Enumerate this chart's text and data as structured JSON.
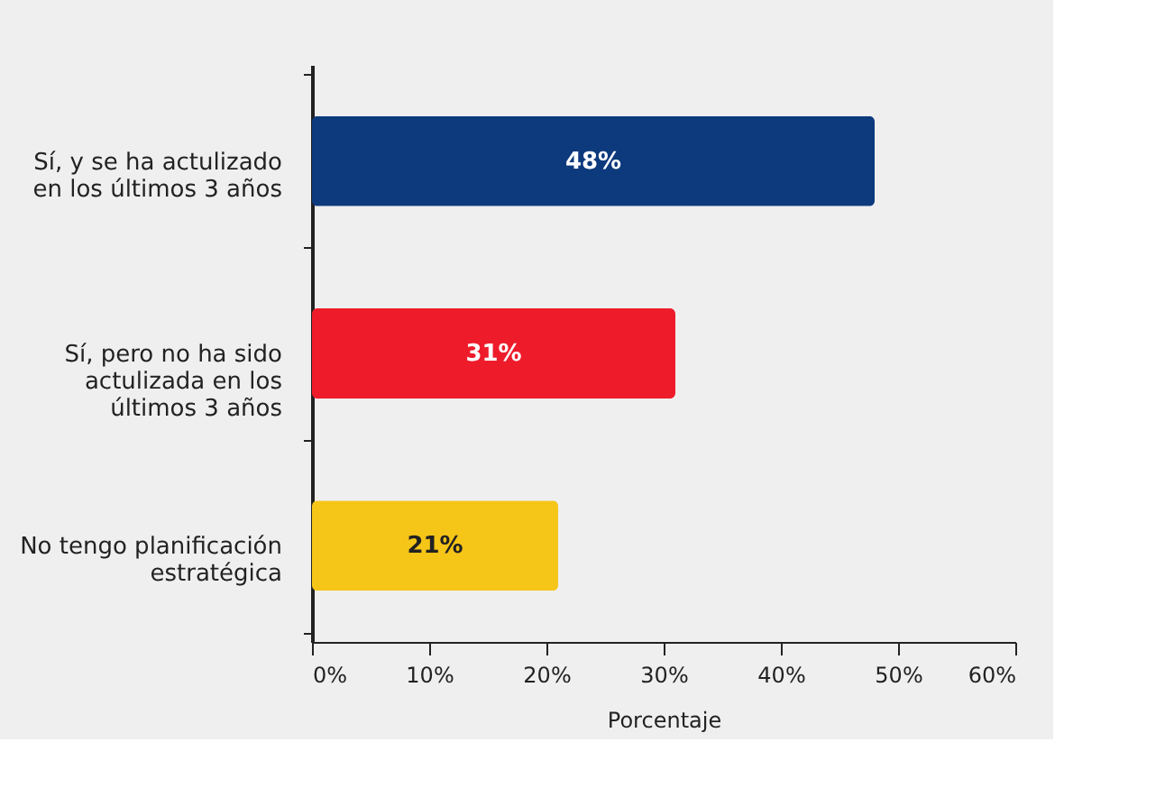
{
  "chart_data": {
    "type": "bar",
    "orientation": "horizontal",
    "xlabel": "Porcentaje",
    "categories": [
      "Sí, y se ha actulizado en los últimos 3 años",
      "Sí, pero no ha sido actulizada en los últimos 3 años",
      "No tengo planificación estratégica"
    ],
    "values": [
      48,
      31,
      21
    ],
    "colors": [
      "#0d3a7d",
      "#ee1c2b",
      "#f5c518"
    ],
    "value_labels": [
      "48%",
      "31%",
      "21%"
    ],
    "xlim": [
      0,
      60
    ],
    "xticks": [
      {
        "value": 0,
        "label": "0%"
      },
      {
        "value": 10,
        "label": "10%"
      },
      {
        "value": 20,
        "label": "20%"
      },
      {
        "value": 30,
        "label": "30%"
      },
      {
        "value": 40,
        "label": "40%"
      },
      {
        "value": 50,
        "label": "50%"
      },
      {
        "value": 60,
        "label": "60%"
      }
    ],
    "grid": false
  }
}
